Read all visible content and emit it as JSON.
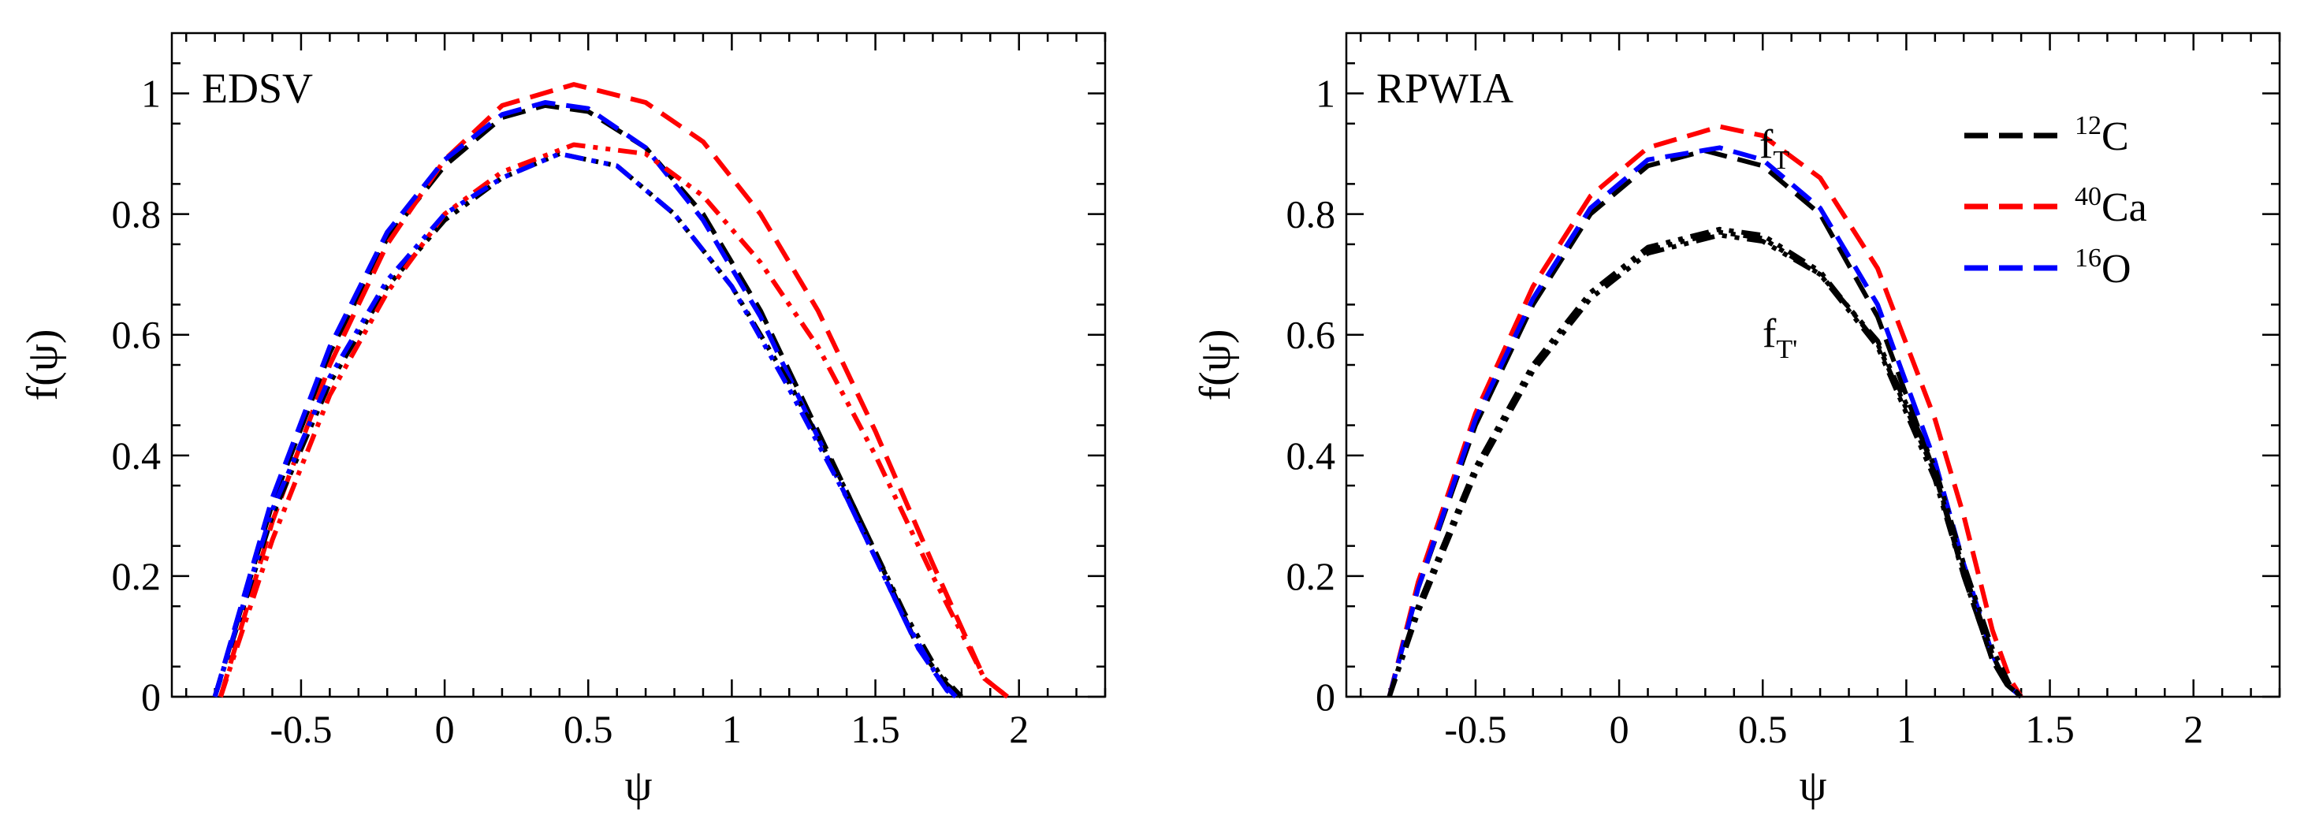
{
  "chart_data": [
    {
      "type": "line",
      "title": "EDSV",
      "xlabel": "ψ",
      "ylabel": "f(ψ)",
      "xlim": [
        -0.95,
        2.3
      ],
      "ylim": [
        0,
        1.1
      ],
      "xticks": [
        -0.5,
        0,
        0.5,
        1,
        1.5,
        2
      ],
      "xtick_labels": [
        "-0.5",
        "0",
        "0.5",
        "1",
        "1.5",
        "2"
      ],
      "yticks": [
        0,
        0.2,
        0.4,
        0.6,
        0.8,
        1
      ],
      "ytick_labels": [
        "0",
        "0.2",
        "0.4",
        "0.6",
        "0.8",
        "1"
      ],
      "series": [
        {
          "name": "12C f_T",
          "color": "#000000",
          "dash": "dashed",
          "x": [
            -0.8,
            -0.6,
            -0.4,
            -0.2,
            0,
            0.2,
            0.35,
            0.5,
            0.7,
            0.9,
            1.1,
            1.3,
            1.5,
            1.65,
            1.75,
            1.8
          ],
          "y": [
            0.0,
            0.32,
            0.57,
            0.76,
            0.88,
            0.96,
            0.98,
            0.97,
            0.91,
            0.8,
            0.64,
            0.44,
            0.24,
            0.08,
            0.02,
            0.0
          ]
        },
        {
          "name": "40Ca f_T",
          "color": "#ff0000",
          "dash": "dashed",
          "x": [
            -0.78,
            -0.6,
            -0.4,
            -0.2,
            0,
            0.2,
            0.45,
            0.7,
            0.9,
            1.1,
            1.3,
            1.5,
            1.7,
            1.88,
            1.96
          ],
          "y": [
            0.0,
            0.29,
            0.55,
            0.75,
            0.89,
            0.98,
            1.015,
            0.985,
            0.92,
            0.8,
            0.64,
            0.44,
            0.22,
            0.03,
            0.0
          ]
        },
        {
          "name": "16O f_T",
          "color": "#0000ff",
          "dash": "dashed",
          "x": [
            -0.8,
            -0.6,
            -0.4,
            -0.2,
            0,
            0.2,
            0.35,
            0.5,
            0.7,
            0.9,
            1.1,
            1.3,
            1.5,
            1.65,
            1.75,
            1.78
          ],
          "y": [
            0.0,
            0.33,
            0.58,
            0.77,
            0.89,
            0.965,
            0.985,
            0.975,
            0.91,
            0.79,
            0.63,
            0.43,
            0.23,
            0.08,
            0.01,
            0.0
          ]
        },
        {
          "name": "12C f_T'",
          "color": "#000000",
          "dash": "dashdotdot",
          "x": [
            -0.8,
            -0.6,
            -0.4,
            -0.2,
            0,
            0.2,
            0.4,
            0.6,
            0.8,
            1.0,
            1.2,
            1.4,
            1.6,
            1.72,
            1.8
          ],
          "y": [
            0.0,
            0.3,
            0.52,
            0.68,
            0.79,
            0.86,
            0.9,
            0.88,
            0.8,
            0.68,
            0.52,
            0.34,
            0.14,
            0.04,
            0.0
          ]
        },
        {
          "name": "40Ca f_T'",
          "color": "#ff0000",
          "dash": "dashdotdot",
          "x": [
            -0.78,
            -0.6,
            -0.4,
            -0.2,
            0,
            0.2,
            0.45,
            0.7,
            0.9,
            1.1,
            1.3,
            1.5,
            1.7,
            1.88,
            1.96
          ],
          "y": [
            0.0,
            0.26,
            0.5,
            0.67,
            0.8,
            0.87,
            0.915,
            0.9,
            0.83,
            0.72,
            0.58,
            0.4,
            0.2,
            0.03,
            0.0
          ]
        },
        {
          "name": "16O f_T'",
          "color": "#0000ff",
          "dash": "dashdotdot",
          "x": [
            -0.8,
            -0.6,
            -0.4,
            -0.2,
            0,
            0.2,
            0.4,
            0.6,
            0.8,
            1.0,
            1.2,
            1.4,
            1.6,
            1.72,
            1.78
          ],
          "y": [
            0.0,
            0.31,
            0.53,
            0.69,
            0.8,
            0.86,
            0.9,
            0.88,
            0.8,
            0.68,
            0.51,
            0.33,
            0.13,
            0.03,
            0.0
          ]
        }
      ]
    },
    {
      "type": "line",
      "title": "RPWIA",
      "xlabel": "ψ",
      "ylabel": "f(ψ)",
      "xlim": [
        -0.95,
        2.3
      ],
      "ylim": [
        0,
        1.1
      ],
      "xticks": [
        -0.5,
        0,
        0.5,
        1,
        1.5,
        2
      ],
      "xtick_labels": [
        "-0.5",
        "0",
        "0.5",
        "1",
        "1.5",
        "2"
      ],
      "yticks": [
        0,
        0.2,
        0.4,
        0.6,
        0.8,
        1
      ],
      "ytick_labels": [
        "0",
        "0.2",
        "0.4",
        "0.6",
        "0.8",
        "1"
      ],
      "series": [
        {
          "name": "12C f_T",
          "color": "#000000",
          "dash": "dashed",
          "x": [
            -0.8,
            -0.7,
            -0.5,
            -0.3,
            -0.1,
            0.1,
            0.3,
            0.5,
            0.7,
            0.9,
            1.1,
            1.2,
            1.3,
            1.35,
            1.4
          ],
          "y": [
            0.0,
            0.18,
            0.45,
            0.65,
            0.8,
            0.88,
            0.905,
            0.88,
            0.8,
            0.63,
            0.37,
            0.2,
            0.06,
            0.02,
            0.0
          ]
        },
        {
          "name": "40Ca f_T",
          "color": "#ff0000",
          "dash": "dashed",
          "x": [
            -0.8,
            -0.7,
            -0.5,
            -0.3,
            -0.1,
            0.1,
            0.35,
            0.5,
            0.7,
            0.9,
            1.1,
            1.2,
            1.3,
            1.36,
            1.4
          ],
          "y": [
            0.0,
            0.19,
            0.47,
            0.68,
            0.83,
            0.91,
            0.945,
            0.93,
            0.86,
            0.71,
            0.46,
            0.3,
            0.11,
            0.03,
            0.0
          ]
        },
        {
          "name": "16O f_T",
          "color": "#0000ff",
          "dash": "dashed",
          "x": [
            -0.8,
            -0.7,
            -0.5,
            -0.3,
            -0.1,
            0.1,
            0.35,
            0.5,
            0.7,
            0.9,
            1.1,
            1.2,
            1.3,
            1.35,
            1.4
          ],
          "y": [
            0.0,
            0.18,
            0.46,
            0.66,
            0.81,
            0.89,
            0.91,
            0.89,
            0.81,
            0.65,
            0.39,
            0.22,
            0.07,
            0.02,
            0.0
          ]
        },
        {
          "name": "12C f_T'",
          "color": "#000000",
          "dash": "dashdotdot",
          "x": [
            -0.8,
            -0.7,
            -0.5,
            -0.3,
            -0.1,
            0.1,
            0.35,
            0.5,
            0.7,
            0.9,
            1.1,
            1.2,
            1.3,
            1.35,
            1.4
          ],
          "y": [
            0.0,
            0.15,
            0.38,
            0.55,
            0.67,
            0.74,
            0.77,
            0.76,
            0.7,
            0.58,
            0.36,
            0.2,
            0.06,
            0.02,
            0.0
          ]
        },
        {
          "name": "40Ca f_T'",
          "color": "#000000",
          "dash": "dashdotdot",
          "x": [
            -0.8,
            -0.7,
            -0.5,
            -0.3,
            -0.1,
            0.1,
            0.35,
            0.5,
            0.7,
            0.9,
            1.1,
            1.2,
            1.3,
            1.36,
            1.4
          ],
          "y": [
            0.0,
            0.14,
            0.37,
            0.54,
            0.66,
            0.735,
            0.765,
            0.755,
            0.7,
            0.59,
            0.38,
            0.22,
            0.08,
            0.02,
            0.0
          ]
        },
        {
          "name": "16O f_T'",
          "color": "#000000",
          "dash": "dashdotdot",
          "x": [
            -0.8,
            -0.7,
            -0.5,
            -0.3,
            -0.1,
            0.1,
            0.35,
            0.5,
            0.7,
            0.9,
            1.1,
            1.2,
            1.3,
            1.35,
            1.4
          ],
          "y": [
            0.0,
            0.15,
            0.38,
            0.55,
            0.67,
            0.745,
            0.775,
            0.765,
            0.705,
            0.585,
            0.37,
            0.21,
            0.07,
            0.02,
            0.0
          ]
        }
      ],
      "annotations": {
        "fT": {
          "main": "f",
          "sub": "T"
        },
        "fTprime": {
          "main": "f",
          "sub": "T'"
        }
      },
      "legend": {
        "placement": "top-right",
        "entries": [
          {
            "sup": "12",
            "label": "C",
            "color": "#000000"
          },
          {
            "sup": "40",
            "label": "Ca",
            "color": "#ff0000"
          },
          {
            "sup": "16",
            "label": "O",
            "color": "#0000ff"
          }
        ]
      }
    }
  ]
}
